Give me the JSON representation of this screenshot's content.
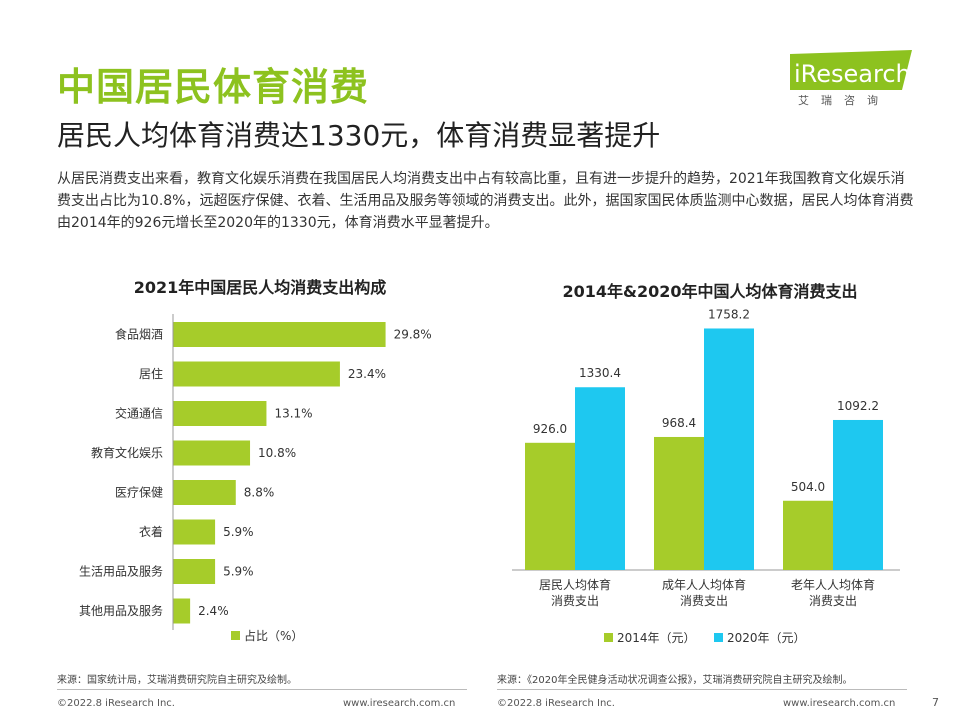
{
  "header": {
    "title": "中国居民体育消费",
    "subtitle": "居民人均体育消费达1330元，体育消费显著提升",
    "paragraph": "从居民消费支出来看，教育文化娱乐消费在我国居民人均消费支出中占有较高比重，且有进一步提升的趋势，2021年我国教育文化娱乐消费支出占比为10.8%，远超医疗保健、衣着、生活用品及服务等领域的消费支出。此外，据国家国民体质监测中心数据，居民人均体育消费由2014年的926元增长至2020年的1330元，体育消费水平显著提升。"
  },
  "logo": {
    "word": "iResearch",
    "cn": "艾瑞咨询",
    "color": "#8dc21f"
  },
  "colors": {
    "green": "#a6cc2a",
    "blue": "#1ec8f0",
    "title_green": "#8dc21f"
  },
  "chart_data": [
    {
      "type": "bar",
      "orientation": "horizontal",
      "title": "2021年中国居民人均消费支出构成",
      "categories": [
        "食品烟酒",
        "居住",
        "交通通信",
        "教育文化娱乐",
        "医疗保健",
        "衣着",
        "生活用品及服务",
        "其他用品及服务"
      ],
      "values": [
        29.8,
        23.4,
        13.1,
        10.8,
        8.8,
        5.9,
        5.9,
        2.4
      ],
      "value_labels": [
        "29.8%",
        "23.4%",
        "13.1%",
        "10.8%",
        "8.8%",
        "5.9%",
        "5.9%",
        "2.4%"
      ],
      "legend": [
        "占比（%）"
      ],
      "legend_position": "bottom",
      "xlim": [
        0,
        30
      ],
      "grid": false,
      "source": "来源：国家统计局，艾瑞消费研究院自主研究及绘制。"
    },
    {
      "type": "bar",
      "title": "2014年&2020年中国人均体育消费支出",
      "categories": [
        "居民人均体育\n消费支出",
        "成年人人均体育\n消费支出",
        "老年人人均体育\n消费支出"
      ],
      "category_lines": [
        [
          "居民人均体育",
          "消费支出"
        ],
        [
          "成年人人均体育",
          "消费支出"
        ],
        [
          "老年人人均体育",
          "消费支出"
        ]
      ],
      "series": [
        {
          "name": "2014年（元）",
          "values": [
            926.0,
            968.4,
            504.0
          ],
          "labels": [
            "926.0",
            "968.4",
            "504.0"
          ]
        },
        {
          "name": "2020年（元）",
          "values": [
            1330.4,
            1758.2,
            1092.2
          ],
          "labels": [
            "1330.4",
            "1758.2",
            "1092.2"
          ]
        }
      ],
      "legend_position": "bottom",
      "ylim": [
        0,
        1900
      ],
      "grid": false,
      "source": "来源：《2020年全民健身活动状况调查公报》，艾瑞消费研究院自主研究及绘制。"
    }
  ],
  "footer": {
    "left_copyright": "©2022.8 iResearch Inc.",
    "left_url": "www.iresearch.com.cn",
    "right_copyright": "©2022.8 iResearch Inc.",
    "right_url": "www.iresearch.com.cn",
    "page_number": "7"
  }
}
